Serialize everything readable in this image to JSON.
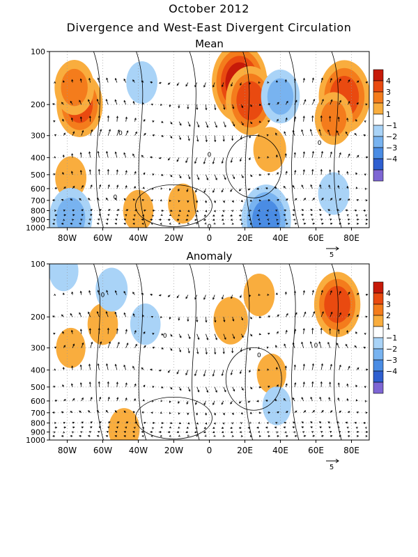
{
  "header": {
    "title": "October 2012",
    "subtitle": "Divergence and West-East Divergent Circulation"
  },
  "chart_data": [
    {
      "type": "heatmap",
      "title": "Mean",
      "x_ticks": [
        "80W",
        "60W",
        "40W",
        "20W",
        "0",
        "20E",
        "40E",
        "60E",
        "80E"
      ],
      "x_tick_values": [
        -80,
        -60,
        -40,
        -20,
        0,
        20,
        40,
        60,
        80
      ],
      "xlim": [
        -90,
        90
      ],
      "y_ticks": [
        "100",
        "200",
        "300",
        "400",
        "500",
        "600",
        "700",
        "800",
        "900",
        "1000"
      ],
      "y_tick_values": [
        100,
        200,
        300,
        400,
        500,
        600,
        700,
        800,
        900,
        1000
      ],
      "ylim": [
        1000,
        100
      ],
      "y_scale": "log",
      "contour_labels": [
        {
          "text": "0",
          "lon": -50,
          "p": 290
        },
        {
          "text": "0",
          "lon": 0,
          "p": 385
        },
        {
          "text": "0",
          "lon": 62,
          "p": 330
        },
        {
          "text": "0",
          "lon": -53,
          "p": 670
        },
        {
          "text": "0",
          "lon": 0,
          "p": 980
        }
      ],
      "vector_reference": "5",
      "shaded_regions": [
        {
          "lon": -73,
          "p": 200,
          "value": 3.2
        },
        {
          "lon": -76,
          "p": 160,
          "value": 2.4
        },
        {
          "lon": -78,
          "p": 520,
          "value": 1.4
        },
        {
          "lon": 17,
          "p": 150,
          "value": 4.3
        },
        {
          "lon": 23,
          "p": 190,
          "value": 3.5
        },
        {
          "lon": 34,
          "p": 360,
          "value": 1.6
        },
        {
          "lon": 76,
          "p": 180,
          "value": 3.8
        },
        {
          "lon": 70,
          "p": 240,
          "value": 2.2
        },
        {
          "lon": -40,
          "p": 800,
          "value": 1.3
        },
        {
          "lon": -15,
          "p": 730,
          "value": 1.2
        },
        {
          "lon": -38,
          "p": 150,
          "value": -1.4
        },
        {
          "lon": 40,
          "p": 180,
          "value": -2.3
        },
        {
          "lon": -78,
          "p": 880,
          "value": -2.8
        },
        {
          "lon": 32,
          "p": 900,
          "value": -3.6
        },
        {
          "lon": 70,
          "p": 640,
          "value": -1.4
        }
      ]
    },
    {
      "type": "heatmap",
      "title": "Anomaly",
      "x_ticks": [
        "80W",
        "60W",
        "40W",
        "20W",
        "0",
        "20E",
        "40E",
        "60E",
        "80E"
      ],
      "x_tick_values": [
        -80,
        -60,
        -40,
        -20,
        0,
        20,
        40,
        60,
        80
      ],
      "xlim": [
        -90,
        90
      ],
      "y_ticks": [
        "100",
        "200",
        "300",
        "400",
        "500",
        "600",
        "700",
        "800",
        "900",
        "1000"
      ],
      "y_tick_values": [
        100,
        200,
        300,
        400,
        500,
        600,
        700,
        800,
        900,
        1000
      ],
      "ylim": [
        1000,
        100
      ],
      "y_scale": "log",
      "contour_labels": [
        {
          "text": "0",
          "lon": -60,
          "p": 150
        },
        {
          "text": "0",
          "lon": -25,
          "p": 255
        },
        {
          "text": "0",
          "lon": 28,
          "p": 330
        },
        {
          "text": "0",
          "lon": 60,
          "p": 290
        }
      ],
      "vector_reference": "5",
      "shaded_regions": [
        {
          "lon": 12,
          "p": 210,
          "value": 1.8
        },
        {
          "lon": 28,
          "p": 150,
          "value": 1.4
        },
        {
          "lon": 72,
          "p": 170,
          "value": 3.2
        },
        {
          "lon": -78,
          "p": 300,
          "value": 1.2
        },
        {
          "lon": -60,
          "p": 220,
          "value": 1.3
        },
        {
          "lon": -48,
          "p": 870,
          "value": 1.4
        },
        {
          "lon": 35,
          "p": 420,
          "value": 1.2
        },
        {
          "lon": -55,
          "p": 140,
          "value": -1.5
        },
        {
          "lon": -36,
          "p": 220,
          "value": -1.3
        },
        {
          "lon": -82,
          "p": 110,
          "value": -1.2
        },
        {
          "lon": 38,
          "p": 640,
          "value": -1.1
        }
      ]
    }
  ],
  "colorbar": {
    "labels": [
      "4",
      "3",
      "2",
      "1",
      "−1",
      "−2",
      "−3",
      "−4"
    ],
    "colors": [
      "#c61a09",
      "#e94a10",
      "#f47c1c",
      "#f9ad3e",
      "#ffffff",
      "#a9d3f7",
      "#78b3f0",
      "#4a8ce4",
      "#2f5fd0",
      "#7e66d4"
    ]
  }
}
